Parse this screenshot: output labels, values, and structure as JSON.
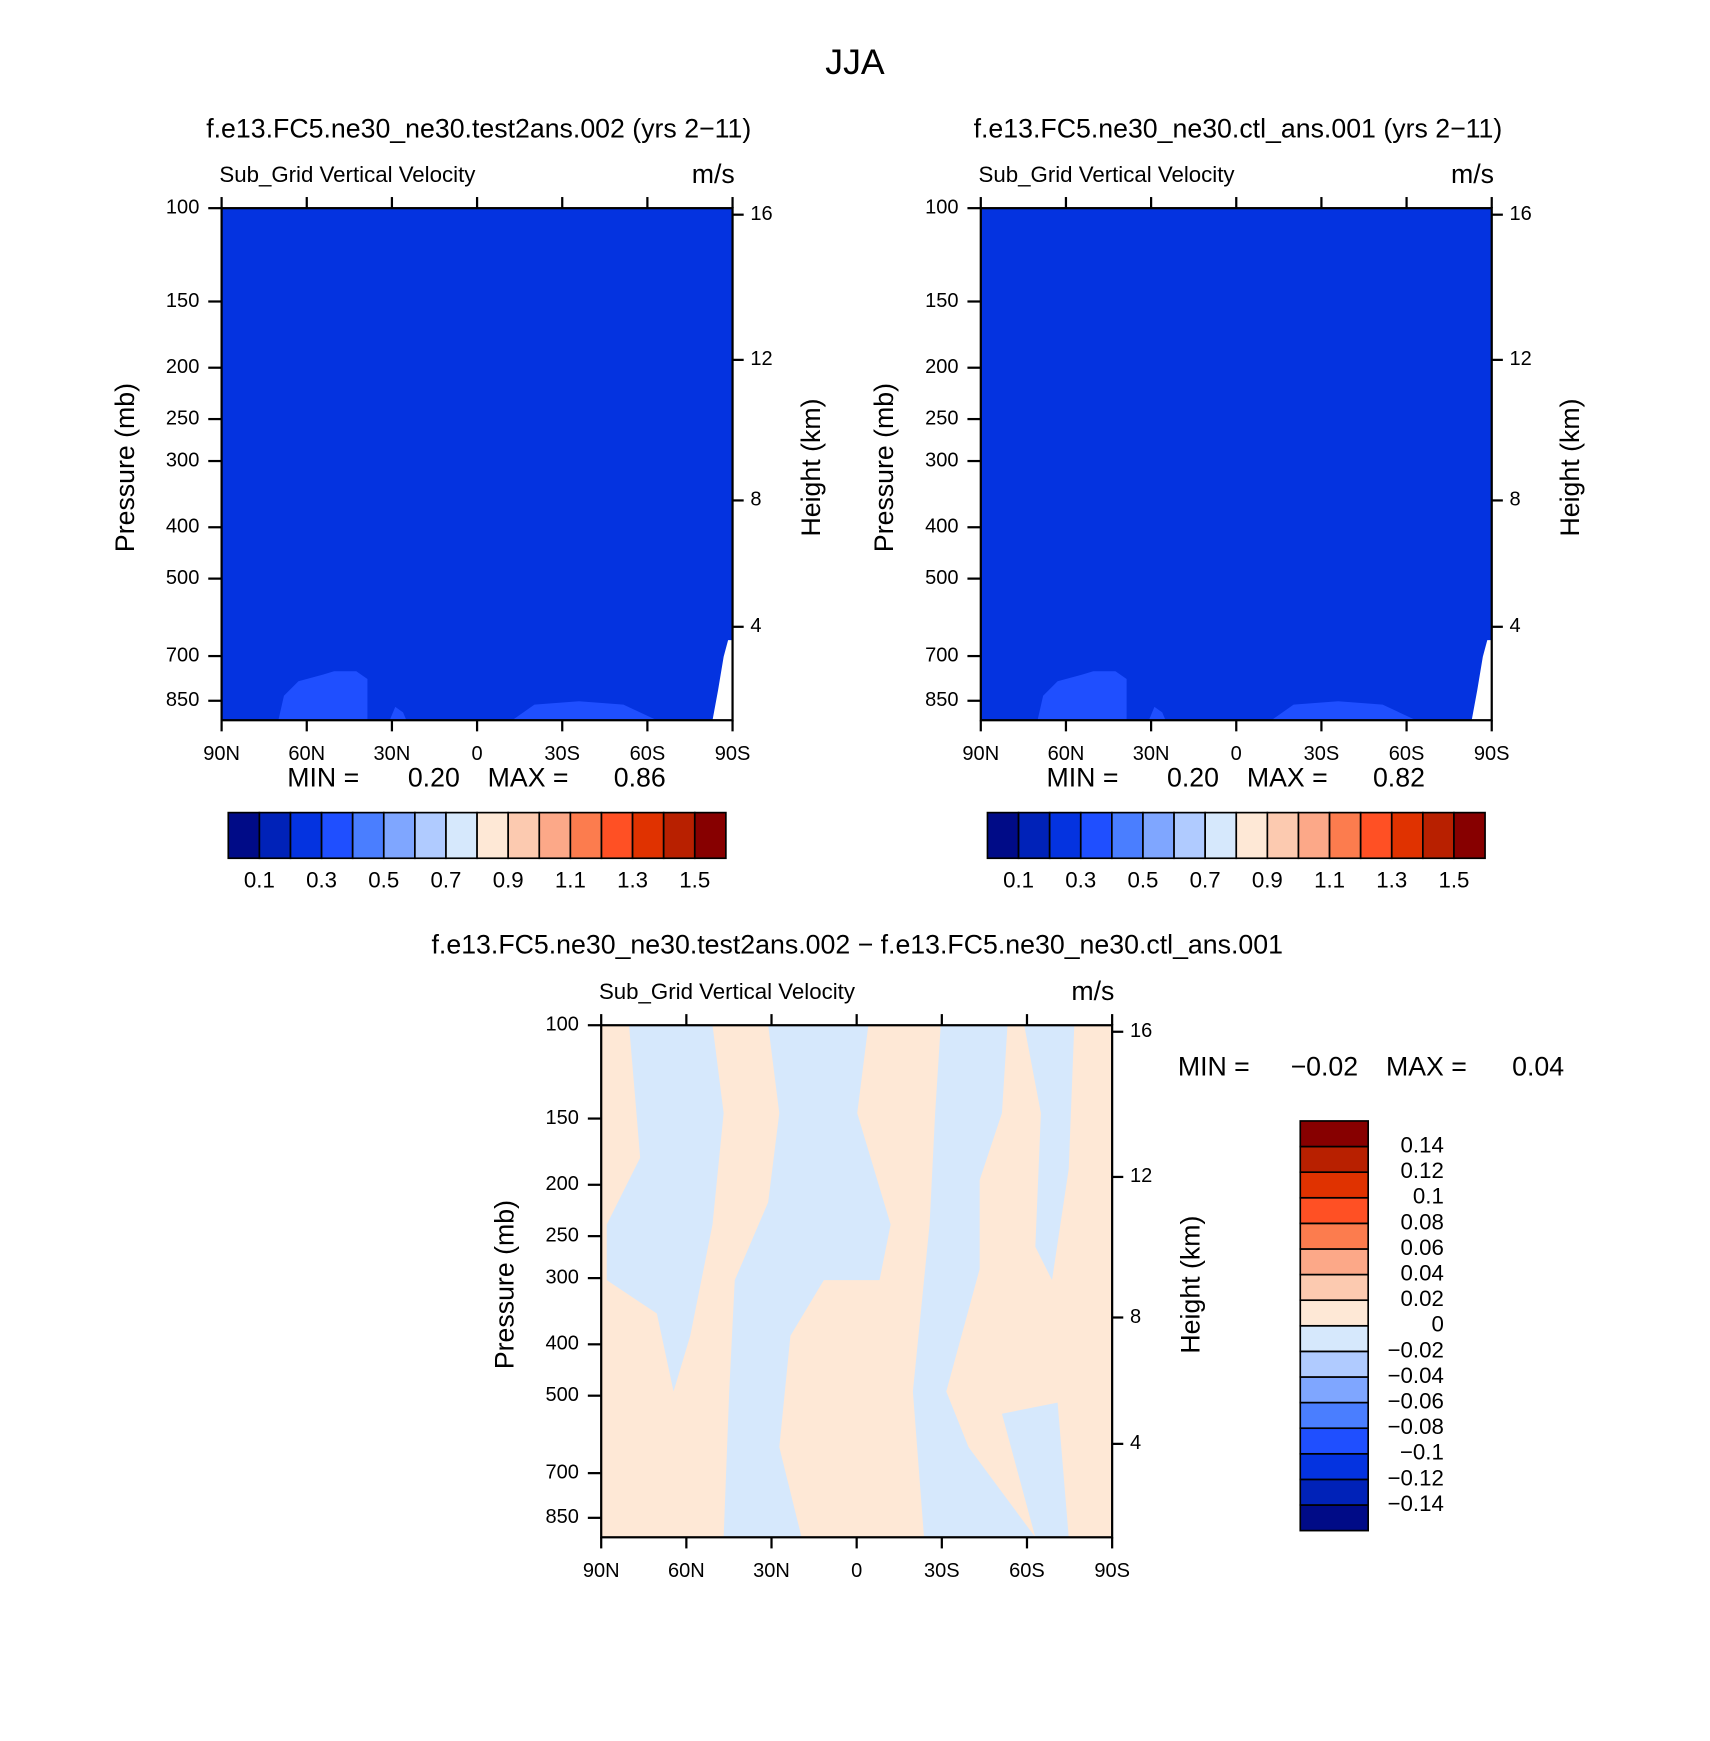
{
  "title": "JJA",
  "chart_data": [
    {
      "type": "contour",
      "title": "f.e13.FC5.ne30_ne30.test2ans.002 (yrs 2−11)",
      "subtitle": "Sub_Grid Vertical Velocity",
      "units": "m/s",
      "ylabel": "Pressure (mb)",
      "y2label": "Height (km)",
      "xlim": [
        90,
        -90
      ],
      "xticks": [
        {
          "value": 90,
          "label": "90N"
        },
        {
          "value": 60,
          "label": "60N"
        },
        {
          "value": 30,
          "label": "30N"
        },
        0,
        {
          "value": -30,
          "label": "30S"
        },
        {
          "value": -60,
          "label": "60S"
        },
        {
          "value": -90,
          "label": "90S"
        }
      ],
      "ylim": [
        100,
        925
      ],
      "log_y": true,
      "yticks": [
        100,
        150,
        200,
        250,
        300,
        400,
        500,
        700,
        850
      ],
      "y2ticks": [
        4,
        8,
        12,
        16
      ],
      "y2_scale": "standard_atmosphere",
      "min_label": "MIN =",
      "min": {
        "value": 0.2,
        "label": "0.20"
      },
      "max_label": "MAX =",
      "max": {
        "value": 0.86,
        "label": "0.86"
      },
      "levels": [
        0.1,
        0.2,
        0.3,
        0.4,
        0.5,
        0.6,
        0.7,
        0.8,
        0.9,
        1.0,
        1.1,
        1.2,
        1.3,
        1.4,
        1.5
      ],
      "level_colors": [
        "#000b87",
        "#0022b8",
        "#0433e0",
        "#1f4fff",
        "#4a7eff",
        "#7fa6ff",
        "#b0cbff",
        "#d6e8fc",
        "#fee8d6",
        "#fccab0",
        "#fca888",
        "#fc7c4e",
        "#ff5024",
        "#e03200",
        "#b82000",
        "#870000"
      ],
      "colorbar": "horizontal",
      "colorbar_label_every": 2
    },
    {
      "type": "contour",
      "title": "f.e13.FC5.ne30_ne30.ctl_ans.001 (yrs 2−11)",
      "subtitle": "Sub_Grid Vertical Velocity",
      "units": "m/s",
      "ylabel": "Pressure (mb)",
      "y2label": "Height (km)",
      "xlim": [
        90,
        -90
      ],
      "xticks": [
        {
          "value": 90,
          "label": "90N"
        },
        {
          "value": 60,
          "label": "60N"
        },
        {
          "value": 30,
          "label": "30N"
        },
        0,
        {
          "value": -30,
          "label": "30S"
        },
        {
          "value": -60,
          "label": "60S"
        },
        {
          "value": -90,
          "label": "90S"
        }
      ],
      "ylim": [
        100,
        925
      ],
      "log_y": true,
      "yticks": [
        100,
        150,
        200,
        250,
        300,
        400,
        500,
        700,
        850
      ],
      "y2ticks": [
        4,
        8,
        12,
        16
      ],
      "y2_scale": "standard_atmosphere",
      "min_label": "MIN =",
      "min": {
        "value": 0.2,
        "label": "0.20"
      },
      "max_label": "MAX =",
      "max": {
        "value": 0.82,
        "label": "0.82"
      },
      "levels": [
        0.1,
        0.2,
        0.3,
        0.4,
        0.5,
        0.6,
        0.7,
        0.8,
        0.9,
        1.0,
        1.1,
        1.2,
        1.3,
        1.4,
        1.5
      ],
      "level_colors": [
        "#000b87",
        "#0022b8",
        "#0433e0",
        "#1f4fff",
        "#4a7eff",
        "#7fa6ff",
        "#b0cbff",
        "#d6e8fc",
        "#fee8d6",
        "#fccab0",
        "#fca888",
        "#fc7c4e",
        "#ff5024",
        "#e03200",
        "#b82000",
        "#870000"
      ],
      "colorbar": "horizontal",
      "colorbar_label_every": 2
    },
    {
      "type": "contour",
      "title": "f.e13.FC5.ne30_ne30.test2ans.002 − f.e13.FC5.ne30_ne30.ctl_ans.001",
      "subtitle": "Sub_Grid Vertical Velocity",
      "units": "m/s",
      "ylabel": "Pressure (mb)",
      "y2label": "Height (km)",
      "xlim": [
        90,
        -90
      ],
      "xticks": [
        {
          "value": 90,
          "label": "90N"
        },
        {
          "value": 60,
          "label": "60N"
        },
        {
          "value": 30,
          "label": "30N"
        },
        0,
        {
          "value": -30,
          "label": "30S"
        },
        {
          "value": -60,
          "label": "60S"
        },
        {
          "value": -90,
          "label": "90S"
        }
      ],
      "ylim": [
        100,
        925
      ],
      "log_y": true,
      "yticks": [
        100,
        150,
        200,
        250,
        300,
        400,
        500,
        700,
        850
      ],
      "y2ticks": [
        4,
        8,
        12,
        16
      ],
      "y2_scale": "standard_atmosphere",
      "min_label": "MIN =",
      "min": {
        "value": -0.02,
        "label": "−0.02"
      },
      "max_label": "MAX =",
      "max": 0.04,
      "levels": [
        {
          "value": -0.14,
          "label": "−0.14"
        },
        {
          "value": -0.12,
          "label": "−0.12"
        },
        {
          "value": -0.1,
          "label": "−0.1"
        },
        {
          "value": -0.08,
          "label": "−0.08"
        },
        {
          "value": -0.06,
          "label": "−0.06"
        },
        {
          "value": -0.04,
          "label": "−0.04"
        },
        {
          "value": -0.02,
          "label": "−0.02"
        },
        0,
        0.02,
        0.04,
        0.06,
        0.08,
        0.1,
        0.12,
        0.14
      ],
      "level_colors": [
        "#000b87",
        "#0022b8",
        "#0433e0",
        "#1f4fff",
        "#4a7eff",
        "#7fa6ff",
        "#b0cbff",
        "#d6e8fc",
        "#fee8d6",
        "#fccab0",
        "#fca888",
        "#fc7c4e",
        "#ff5024",
        "#e03200",
        "#b82000",
        "#870000"
      ],
      "colorbar": "vertical",
      "colorbar_label_every": 1
    }
  ]
}
